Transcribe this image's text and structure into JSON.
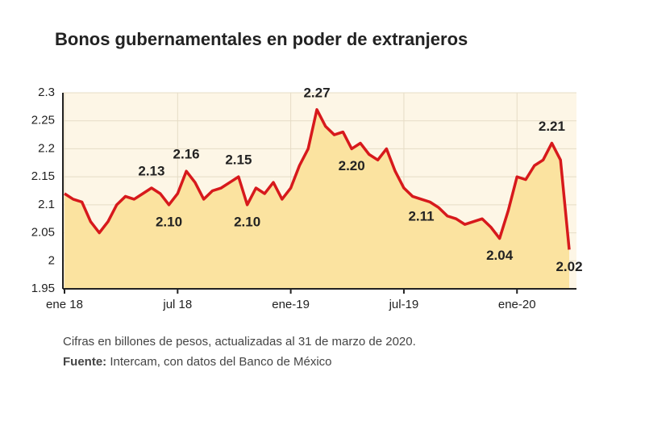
{
  "chart_data": {
    "type": "area",
    "title": "Bonos gubernamentales en poder de extranjeros",
    "note": "Cifras en billones de pesos, actualizadas al 31 de marzo de 2020.",
    "source_label": "Fuente:",
    "source": "Intercam, con datos del Banco de México",
    "categories": [
      "ene 18",
      null,
      null,
      null,
      null,
      null,
      null,
      null,
      null,
      null,
      null,
      null,
      null,
      "jul 18",
      null,
      null,
      null,
      null,
      null,
      null,
      null,
      null,
      null,
      null,
      null,
      null,
      "ene-19",
      null,
      null,
      null,
      null,
      null,
      null,
      null,
      null,
      null,
      null,
      null,
      null,
      "jul-19",
      null,
      null,
      null,
      null,
      null,
      null,
      null,
      null,
      null,
      null,
      null,
      null,
      "ene-20",
      null,
      null,
      null,
      null,
      null,
      null
    ],
    "values": [
      2.12,
      2.11,
      2.105,
      2.07,
      2.05,
      2.07,
      2.1,
      2.115,
      2.11,
      2.12,
      2.13,
      2.12,
      2.1,
      2.12,
      2.16,
      2.14,
      2.11,
      2.125,
      2.13,
      2.14,
      2.15,
      2.1,
      2.13,
      2.12,
      2.14,
      2.11,
      2.13,
      2.17,
      2.2,
      2.27,
      2.24,
      2.225,
      2.23,
      2.2,
      2.21,
      2.19,
      2.18,
      2.2,
      2.16,
      2.13,
      2.115,
      2.11,
      2.105,
      2.095,
      2.08,
      2.075,
      2.065,
      2.07,
      2.075,
      2.06,
      2.04,
      2.09,
      2.15,
      2.145,
      2.17,
      2.18,
      2.21,
      2.18,
      2.02
    ],
    "value_labels": [
      null,
      null,
      null,
      null,
      null,
      null,
      null,
      null,
      null,
      null,
      "2.13",
      null,
      "2.10",
      null,
      "2.16",
      null,
      null,
      null,
      null,
      null,
      "2.15",
      "2.10",
      null,
      null,
      null,
      null,
      null,
      null,
      null,
      "2.27",
      null,
      null,
      null,
      "2.20",
      null,
      null,
      null,
      null,
      null,
      null,
      null,
      "2.11",
      null,
      null,
      null,
      null,
      null,
      null,
      null,
      null,
      "2.04",
      null,
      null,
      null,
      null,
      null,
      "2.21",
      null,
      "2.02"
    ],
    "color": "#d7191c",
    "fill": "#fbe3a0",
    "ylim": [
      1.95,
      2.3
    ],
    "yticks": [
      1.95,
      2,
      2.05,
      2.1,
      2.15,
      2.2,
      2.25,
      2.3
    ],
    "grid": true
  }
}
